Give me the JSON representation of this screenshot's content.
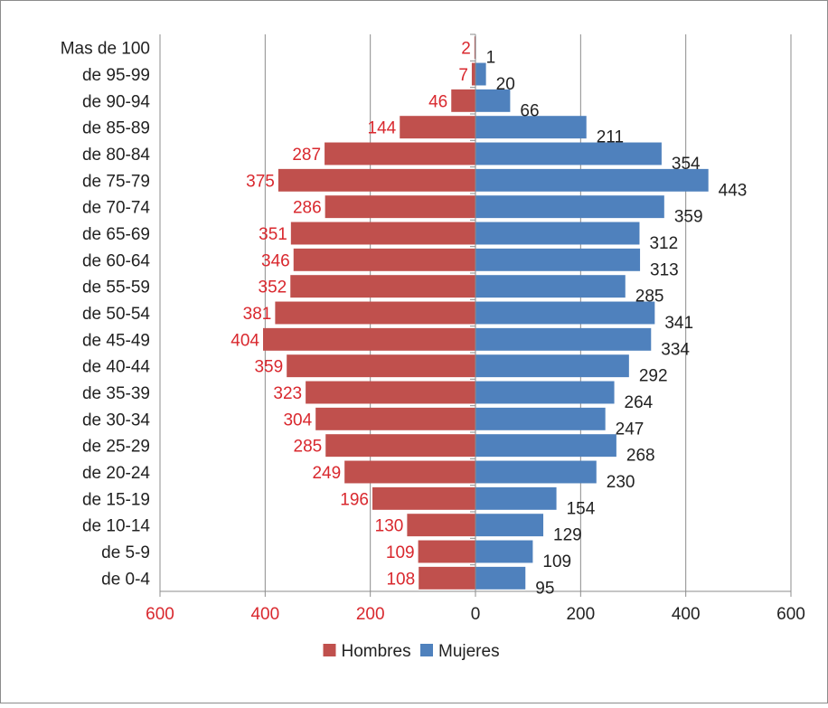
{
  "chart_data": {
    "type": "bar",
    "orientation": "horizontal",
    "layout": "population-pyramid",
    "categories": [
      "Mas de 100",
      "de 95-99",
      "de 90-94",
      "de 85-89",
      "de 80-84",
      "de 75-79",
      "de 70-74",
      "de 65-69",
      "de 60-64",
      "de 55-59",
      "de 50-54",
      "de 45-49",
      "de 40-44",
      "de 35-39",
      "de 30-34",
      "de 25-29",
      "de 20-24",
      "de 15-19",
      "de 10-14",
      "de 5-9",
      "de 0-4"
    ],
    "series": [
      {
        "name": "Hombres",
        "color": "#c0504d",
        "label_color": "#d9282e",
        "values": [
          2,
          7,
          46,
          144,
          287,
          375,
          286,
          351,
          346,
          352,
          381,
          404,
          359,
          323,
          304,
          285,
          249,
          196,
          130,
          109,
          108
        ]
      },
      {
        "name": "Mujeres",
        "color": "#4f81bd",
        "label_color": "#222222",
        "values": [
          1,
          20,
          66,
          211,
          354,
          443,
          359,
          312,
          313,
          285,
          341,
          334,
          292,
          264,
          247,
          268,
          230,
          154,
          129,
          109,
          95
        ]
      }
    ],
    "xlim": [
      -600,
      600
    ],
    "x_ticks": [
      {
        "value": -600,
        "label": "600"
      },
      {
        "value": -400,
        "label": "400"
      },
      {
        "value": -200,
        "label": "200"
      },
      {
        "value": 0,
        "label": "0"
      },
      {
        "value": 200,
        "label": "200"
      },
      {
        "value": 400,
        "label": "400"
      },
      {
        "value": 600,
        "label": "600"
      }
    ],
    "tick_colors": {
      "negative": "#d9282e",
      "zero": "#222222",
      "positive": "#222222"
    },
    "grid": "vertical",
    "legend": {
      "position": "bottom"
    },
    "title": "",
    "xlabel": "",
    "ylabel": ""
  }
}
